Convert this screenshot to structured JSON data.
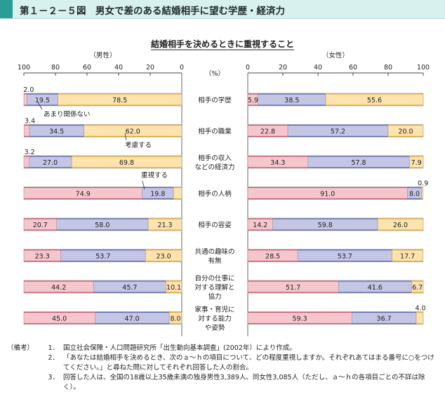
{
  "figure_title": "第１－２－５図　男女で差のある結婚相手に望む学歴・経済力",
  "chart_data": {
    "type": "bar",
    "title": "結婚相手を決めるときに重視すること",
    "stacked": true,
    "categories": [
      "相手の学歴",
      "相手の職業",
      "相手の収入\nなどの経済力",
      "相手の人柄",
      "相手の容姿",
      "共通の趣味の\n有無",
      "自分の仕事に\n対する理解と\n協力",
      "家事・育児に\n対する能力\nや姿勢"
    ],
    "unit_label": "（%）",
    "panels": [
      {
        "name": "（男性）",
        "direction": "reversed",
        "xlim": [
          0,
          100
        ],
        "ticks": [
          100,
          80,
          60,
          40,
          20,
          0
        ],
        "series": [
          {
            "name": "あまり関係ない",
            "color": "#fde3ae",
            "values": [
              78.5,
              62.0,
              69.8,
              5.3,
              21.3,
              23.0,
              10.1,
              8.0
            ]
          },
          {
            "name": "考慮する",
            "color": "#c5c5e6",
            "values": [
              19.5,
              34.5,
              27.0,
              19.8,
              58.0,
              53.7,
              45.7,
              47.0
            ]
          },
          {
            "name": "重視する",
            "color": "#f6c6cf",
            "values": [
              2.0,
              3.4,
              3.2,
              74.9,
              20.7,
              23.3,
              44.2,
              45.0
            ]
          }
        ]
      },
      {
        "name": "（女性）",
        "direction": "normal",
        "xlim": [
          0,
          100
        ],
        "ticks": [
          0,
          20,
          40,
          60,
          80,
          100
        ],
        "series": [
          {
            "name": "重視する",
            "color": "#f6c6cf",
            "values": [
              5.9,
              22.8,
              34.3,
              91.0,
              14.2,
              28.5,
              51.7,
              59.3
            ]
          },
          {
            "name": "考慮する",
            "color": "#c5c5e6",
            "values": [
              38.5,
              57.2,
              57.8,
              8.0,
              59.8,
              53.7,
              41.6,
              36.7
            ]
          },
          {
            "name": "あまり関係ない",
            "color": "#fde3ae",
            "values": [
              55.6,
              20.0,
              7.9,
              0.9,
              26.0,
              17.7,
              6.7,
              4.0
            ]
          }
        ]
      }
    ]
  },
  "notes": {
    "head": "（備考）",
    "items": [
      {
        "num": "1．",
        "text": "国立社会保障・人口問題研究所「出生動向基本調査」(2002年）により作成。"
      },
      {
        "num": "2．",
        "text": "「あなたは結婚相手を決めるとき、次のａ～ｈの項目について、どの程度重視しますか。それぞれあてはまる番号に○をつけてください。」と尋ねた問に対してそれぞれ回答した人の割合。"
      },
      {
        "num": "3．",
        "text": "回答した人は、全国の18歳以上35歳未満の独身男性3,389人、同女性3,085人（ただし、ａ～ｈの各項目ごとの不詳は除く）。"
      }
    ]
  }
}
